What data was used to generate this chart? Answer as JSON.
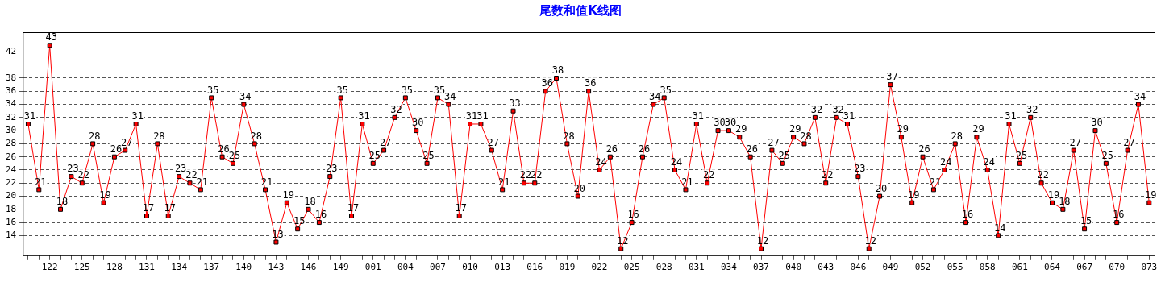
{
  "chart_data": {
    "type": "line",
    "title": "尾数和值K线图",
    "categories": [
      null,
      null,
      "122",
      null,
      null,
      "125",
      null,
      null,
      "128",
      null,
      null,
      "131",
      null,
      null,
      "134",
      null,
      null,
      "137",
      null,
      null,
      "140",
      null,
      null,
      "143",
      null,
      null,
      "146",
      null,
      null,
      "149",
      null,
      null,
      "001",
      null,
      null,
      "004",
      null,
      null,
      "007",
      null,
      null,
      "010",
      null,
      null,
      "013",
      null,
      null,
      "016",
      null,
      null,
      "019",
      null,
      null,
      "022",
      null,
      null,
      "025",
      null,
      null,
      "028",
      null,
      null,
      "031",
      null,
      null,
      "034",
      null,
      null,
      "037",
      null,
      null,
      "040",
      null,
      null,
      "043",
      null,
      null,
      "046",
      null,
      null,
      "049",
      null,
      null,
      "052",
      null,
      null,
      "055",
      null,
      null,
      "058",
      null,
      null,
      "061",
      null,
      null,
      "064",
      null,
      null,
      "067",
      null,
      null,
      "070",
      null,
      null,
      "073"
    ],
    "series": [
      {
        "color": "#ff0000",
        "values": [
          31,
          21,
          43,
          18,
          23,
          22,
          28,
          19,
          26,
          27,
          31,
          17,
          28,
          17,
          23,
          22,
          21,
          35,
          26,
          25,
          34,
          28,
          21,
          13,
          19,
          15,
          18,
          16,
          23,
          35,
          17,
          31,
          25,
          27,
          32,
          35,
          30,
          25,
          35,
          34,
          17,
          31,
          31,
          27,
          21,
          33,
          22,
          22,
          36,
          38,
          28,
          20,
          36,
          24,
          26,
          12,
          16,
          26,
          34,
          35,
          24,
          21,
          31,
          22,
          30,
          30,
          29,
          26,
          12,
          27,
          25,
          29,
          28,
          32,
          22,
          32,
          31,
          23,
          12,
          20,
          37,
          29,
          19,
          26,
          21,
          24,
          28,
          16,
          29,
          24,
          14,
          31,
          25,
          32,
          22,
          19,
          18,
          27,
          15,
          30,
          25,
          16,
          27,
          34,
          19
        ]
      }
    ],
    "ylim": [
      11,
      45
    ],
    "yticks": [
      14,
      16,
      18,
      20,
      22,
      24,
      26,
      28,
      30,
      32,
      34,
      36,
      38,
      42
    ],
    "grid": "y",
    "legend": false,
    "marker": "square",
    "line_style": "solid",
    "data_labels": true
  }
}
